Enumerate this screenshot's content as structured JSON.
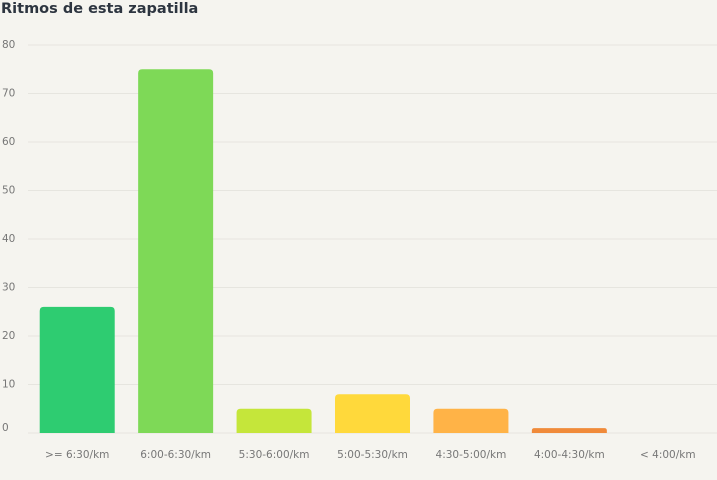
{
  "chart_data": {
    "type": "bar",
    "title": "Ritmos de esta zapatilla",
    "categories": [
      ">= 6:30/km",
      "6:00-6:30/km",
      "5:30-6:00/km",
      "5:00-5:30/km",
      "4:30-5:00/km",
      "4:00-4:30/km",
      "< 4:00/km"
    ],
    "values": [
      26,
      75,
      5,
      8,
      5,
      1,
      0
    ],
    "colors": [
      "#2ecc71",
      "#7ed957",
      "#c5e63a",
      "#ffd93b",
      "#ffb347",
      "#f08a3a",
      "#e8553a"
    ],
    "ylim": [
      0,
      80
    ],
    "yticks": [
      0,
      10,
      20,
      30,
      40,
      50,
      60,
      70,
      80
    ],
    "grid": true
  }
}
